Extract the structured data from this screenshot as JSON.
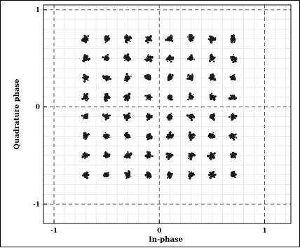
{
  "chart_data": {
    "type": "scatter",
    "title": "",
    "xlabel": "In-phase",
    "ylabel": "Quadrature phase",
    "xlim": [
      -1.1,
      1.25
    ],
    "ylim": [
      -1.2,
      1.05
    ],
    "xticks": [
      -1,
      0,
      1
    ],
    "yticks": [
      -1,
      0,
      1
    ],
    "xtick_labels": [
      "-1",
      "0",
      "1"
    ],
    "ytick_labels": [
      "-1",
      "0",
      "1"
    ],
    "grid": true,
    "dashed_reference_lines": {
      "x": [
        -1,
        0,
        1
      ],
      "y": [
        -1,
        0,
        1
      ]
    },
    "colors": {
      "points": "#1a1a1a",
      "grid": "#dddddd",
      "reference": "#555555"
    },
    "constellation": {
      "levels_i": [
        -0.7,
        -0.5,
        -0.3,
        -0.1,
        0.1,
        0.3,
        0.5,
        0.7
      ],
      "levels_q": [
        -0.7,
        -0.5,
        -0.3,
        -0.1,
        0.1,
        0.3,
        0.5,
        0.7
      ],
      "order": 64
    }
  }
}
